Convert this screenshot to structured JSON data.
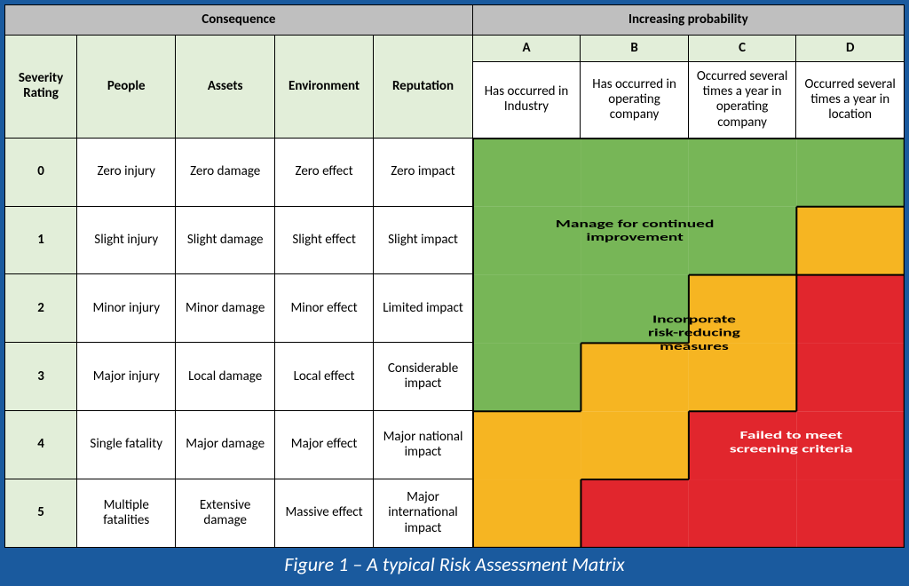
{
  "caption": "Figure 1 – A typical Risk Assessment Matrix",
  "headers": {
    "consequence": "Consequence",
    "increasing_probability": "Increasing probability",
    "severity_rating": "Severity Rating",
    "consequence_cols": [
      "People",
      "Assets",
      "Environment",
      "Reputation"
    ],
    "prob_letters": [
      "A",
      "B",
      "C",
      "D"
    ],
    "prob_descs": [
      "Has occurred in Industry",
      "Has occurred in operating company",
      "Occurred several times a year in operating company",
      "Occurred several times a year in location"
    ]
  },
  "rows": [
    {
      "sev": "0",
      "cells": [
        "Zero injury",
        "Zero damage",
        "Zero effect",
        "Zero impact"
      ]
    },
    {
      "sev": "1",
      "cells": [
        "Slight injury",
        "Slight damage",
        "Slight effect",
        "Slight impact"
      ]
    },
    {
      "sev": "2",
      "cells": [
        "Minor injury",
        "Minor damage",
        "Minor effect",
        "Limited impact"
      ]
    },
    {
      "sev": "3",
      "cells": [
        "Major injury",
        "Local damage",
        "Local effect",
        "Considerable impact"
      ]
    },
    {
      "sev": "4",
      "cells": [
        "Single fatality",
        "Major damage",
        "Major effect",
        "Major national impact"
      ]
    },
    {
      "sev": "5",
      "cells": [
        "Multiple fatalities",
        "Extensive damage",
        "Massive effect",
        "Major international impact"
      ]
    }
  ],
  "risk_zones": {
    "green": {
      "color": "#77b657",
      "label_line1": "Manage for continued",
      "label_line2": "improvement"
    },
    "yellow": {
      "color": "#f6b522",
      "label_line1": "Incorporate",
      "label_line2": "risk-reducing",
      "label_line3": "measures"
    },
    "red": {
      "color": "#e1262d",
      "label_line1": "Failed to meet",
      "label_line2": "screening criteria"
    }
  },
  "layout": {
    "outer_width": 1024,
    "outer_height": 660,
    "border_color": "#1a5a9e",
    "border_width": 5,
    "caption_height": 38,
    "col_widths_pct": [
      8.0,
      11.0,
      11.0,
      11.0,
      11.0,
      12.0,
      12.0,
      12.0,
      12.0
    ],
    "row_heights_pct": [
      5.5,
      5.0,
      14.0,
      12.583,
      12.583,
      12.583,
      12.583,
      12.583,
      12.583
    ],
    "colors": {
      "grey_header": "#bfbfbf",
      "light_green_header": "#e2eed9",
      "white": "#ffffff",
      "text": "#000000",
      "caption_bg": "#1a5a9e",
      "caption_text": "#ffffff"
    },
    "fonts": {
      "body": "Calibri, Arial, sans-serif",
      "header_size_pt": 17,
      "cell_size_pt": 15,
      "desc_size_pt": 14,
      "caption_size_pt": 22,
      "risk_label_size_pt": 16
    }
  },
  "risk_grid": {
    "comment": "6x4 severity×probability grid; values: 0=green,1=yellow,2=red",
    "cells": [
      [
        0,
        0,
        0,
        0
      ],
      [
        0,
        0,
        0,
        1
      ],
      [
        0,
        0,
        1,
        2
      ],
      [
        0,
        1,
        1,
        2
      ],
      [
        1,
        1,
        2,
        2
      ],
      [
        1,
        2,
        2,
        2
      ]
    ]
  }
}
